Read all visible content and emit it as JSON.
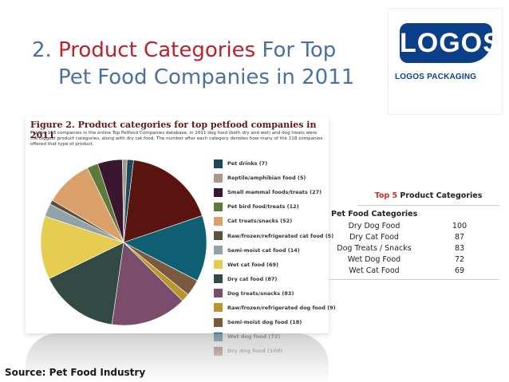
{
  "slide": {
    "title_num": "2.",
    "title_accent": "Product Categories",
    "title_rest1": "For Top",
    "title_line2": "Pet Food Companies in 2011",
    "source": "Source: Pet Food Industry"
  },
  "logo": {
    "text": "LOGOS",
    "sub": "LOGOS PACKAGING",
    "brand_color": "#0b3f8a"
  },
  "figure": {
    "title": "Figure 2. Product categories for top petfood companies in 2011",
    "caption": "For the 118 companies in the online Top Petfood Companies database, in 2011 dog food (both dry and wet) and dog treats were the biggest product categories, along with dry cat food. The number after each category denotes how many of the 118 companies offered that type of product."
  },
  "chart_data": {
    "type": "pie",
    "title": "Figure 2. Product categories for top petfood companies in 2011",
    "slices": [
      {
        "label": "Pet drinks",
        "count": 7,
        "color": "#1a4a5c"
      },
      {
        "label": "Reptile/amphibian food",
        "count": 5,
        "color": "#a89a8a"
      },
      {
        "label": "Small mammal foods/treats",
        "count": 27,
        "color": "#3a1630"
      },
      {
        "label": "Pet bird food/treats",
        "count": 12,
        "color": "#5e7a3a"
      },
      {
        "label": "Cat treats/snacks",
        "count": 52,
        "color": "#d9a06a"
      },
      {
        "label": "Raw/frozen/refrigerated cat food",
        "count": 5,
        "color": "#5a5238"
      },
      {
        "label": "Semi-moist cat food",
        "count": 14,
        "color": "#8fa3a8"
      },
      {
        "label": "Wet cat food",
        "count": 69,
        "color": "#e6cc50"
      },
      {
        "label": "Dry cat food",
        "count": 87,
        "color": "#334a44"
      },
      {
        "label": "Dog treats/snacks",
        "count": 83,
        "color": "#7a4e6a"
      },
      {
        "label": "Raw/frozen/refrigerated dog food",
        "count": 9,
        "color": "#b8962e"
      },
      {
        "label": "Semi-moist dog food",
        "count": 18,
        "color": "#7a5a3e"
      },
      {
        "label": "Wet dog food",
        "count": 72,
        "color": "#0e5f74"
      },
      {
        "label": "Dry dog food",
        "count": 100,
        "color": "#5a1410"
      }
    ],
    "legend": [
      "Pet drinks (7)",
      "Reptile/amphibian food (5)",
      "Small mammal foods/treats (27)",
      "Pet bird food/treats (12)",
      "Cat treats/snacks (52)",
      "Raw/frozen/refrigerated cat food (5)",
      "Semi-moist cat food (14)",
      "Wet cat food (69)",
      "Dry cat food (87)",
      "Dog treats/snacks (83)",
      "Raw/frozen/refrigerated dog food (9)",
      "Semi-moist dog food (18)",
      "Wet dog food (72)",
      "Dry dog food (100)"
    ],
    "legend_placement": "right"
  },
  "table": {
    "title_accent": "Top 5",
    "title_rest": "Product Categories",
    "header": "Pet Food Categories",
    "rows": [
      {
        "name": "Dry Dog Food",
        "value": "100"
      },
      {
        "name": "Dry Cat Food",
        "value": "87"
      },
      {
        "name": "Dog Treats / Snacks",
        "value": "83"
      },
      {
        "name": "Wet Dog Food",
        "value": "72"
      },
      {
        "name": "Wet Cat Food",
        "value": "69"
      }
    ]
  },
  "colors": {
    "title_blue": "#4a6fa5",
    "title_red": "#b8232f",
    "table_red": "#d0302a"
  }
}
